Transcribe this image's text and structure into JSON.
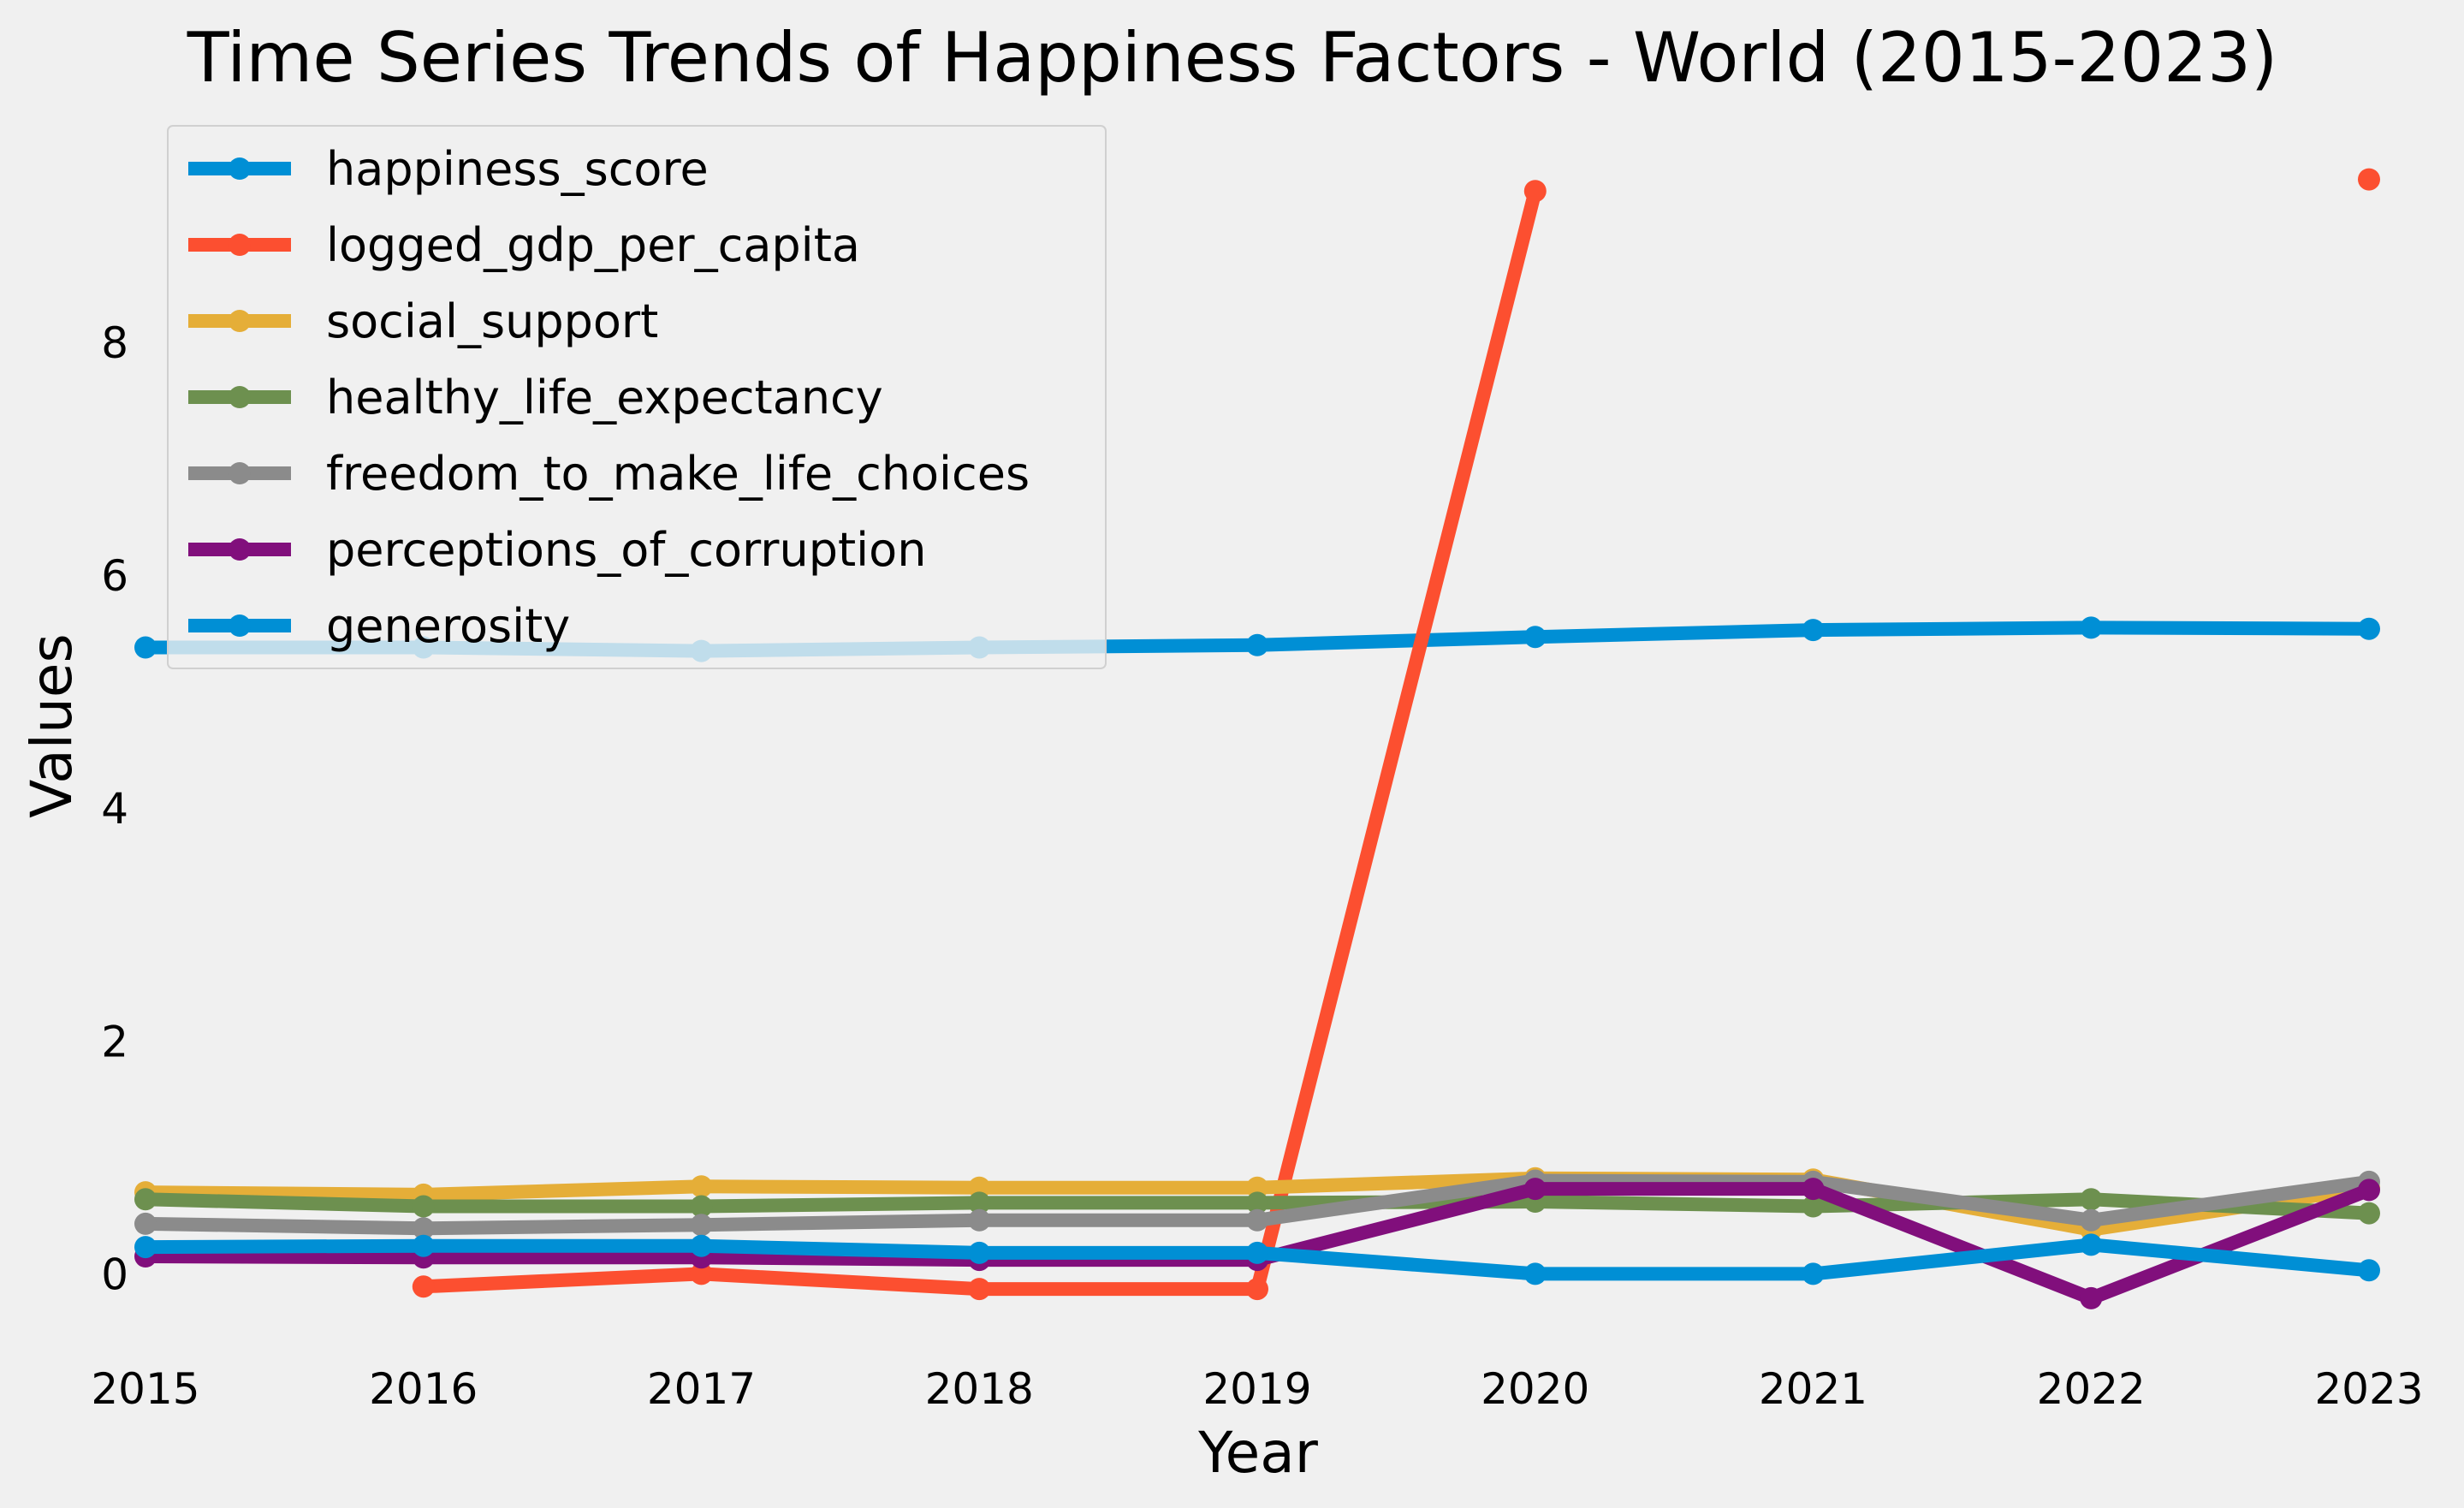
{
  "chart_data": {
    "type": "line",
    "title": "Time Series Trends of Happiness Factors - World (2015-2023)",
    "xlabel": "Year",
    "ylabel": "Values",
    "x": [
      2015,
      2016,
      2017,
      2018,
      2019,
      2020,
      2021,
      2022,
      2023
    ],
    "xlim": [
      2015,
      2023
    ],
    "ylim": [
      -0.6,
      9.75
    ],
    "yticks": [
      0,
      2,
      4,
      6,
      8
    ],
    "grid": false,
    "legend_position": "top-left",
    "series": [
      {
        "name": "happiness_score",
        "color": "#008fd5",
        "values": [
          5.38,
          5.38,
          5.35,
          5.38,
          5.4,
          5.47,
          5.53,
          5.55,
          5.54
        ]
      },
      {
        "name": "logged_gdp_per_capita",
        "color": "#fc4f30",
        "values": [
          null,
          -0.11,
          0.0,
          -0.13,
          -0.13,
          9.3,
          null,
          null,
          9.4
        ]
      },
      {
        "name": "social_support",
        "color": "#e5ae38",
        "values": [
          0.7,
          0.68,
          0.75,
          0.74,
          0.74,
          0.82,
          0.81,
          0.38,
          0.74
        ]
      },
      {
        "name": "healthy_life_expectancy",
        "color": "#6d904f",
        "values": [
          0.64,
          0.58,
          0.58,
          0.61,
          0.61,
          0.62,
          0.58,
          0.64,
          0.52
        ]
      },
      {
        "name": "freedom_to_make_life_choices",
        "color": "#8b8b8b",
        "values": [
          0.43,
          0.39,
          0.42,
          0.46,
          0.46,
          0.8,
          0.79,
          0.46,
          0.79
        ]
      },
      {
        "name": "perceptions_of_corruption",
        "color": "#810f7c",
        "values": [
          0.15,
          0.14,
          0.14,
          0.12,
          0.12,
          0.73,
          0.73,
          -0.21,
          0.72
        ]
      },
      {
        "name": "generosity",
        "color": "#008fd5",
        "values": [
          0.23,
          0.24,
          0.24,
          0.18,
          0.18,
          0.0,
          0.0,
          0.25,
          0.03
        ]
      }
    ]
  }
}
